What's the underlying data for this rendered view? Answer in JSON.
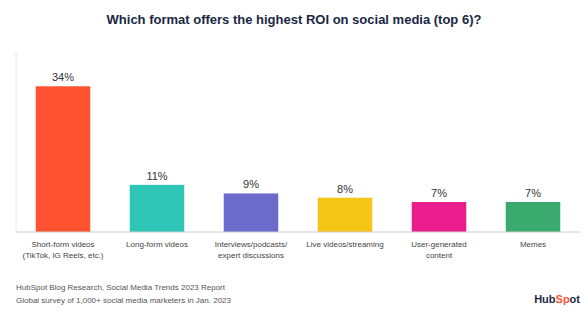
{
  "chart_data": {
    "type": "bar",
    "title": "Which format offers the highest ROI on social media (top 6)?",
    "categories": [
      "Short-form videos\n(TikTok, IG Reels, etc.)",
      "Long-form videos",
      "Interviews/podcasts/\nexpert discussions",
      "Live videos/streaming",
      "User-generated\ncontent",
      "Memes"
    ],
    "values": [
      34,
      11,
      9,
      8,
      7,
      7
    ],
    "value_labels": [
      "34%",
      "11%",
      "9%",
      "8%",
      "7%",
      "7%"
    ],
    "colors": [
      "#FF5230",
      "#2EC4B6",
      "#6B6BCC",
      "#F5C518",
      "#E91E8C",
      "#3BAA6E"
    ],
    "ylim": [
      0,
      42
    ],
    "grid": false,
    "data_labels": true,
    "tick_labels": "x",
    "annotations": [
      "HubSpot Blog Research, Social Media Trends 2023 Report",
      "Global survey of 1,000+ social media marketers in Jan. 2023",
      "HubSpot"
    ]
  }
}
